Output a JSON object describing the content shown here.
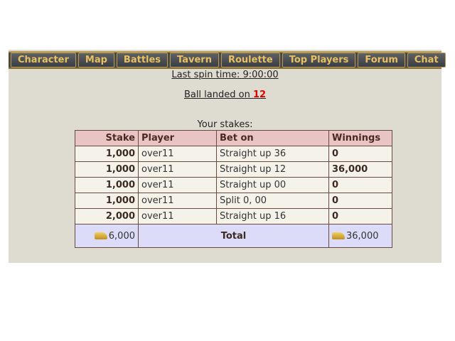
{
  "nav": {
    "tabs": [
      "Character",
      "Map",
      "Battles",
      "Tavern",
      "Roulette",
      "Top Players",
      "Forum",
      "Chat"
    ]
  },
  "spin": {
    "last_spin": "Last spin time: 9:00:00",
    "ball_prefix": "Ball landed on ",
    "ball_number": "12",
    "stakes_label": "Your stakes:"
  },
  "table": {
    "headers": [
      "Stake",
      "Player",
      "Bet on",
      "Winnings"
    ],
    "rows": [
      [
        "1,000",
        "over11",
        "Straight up 36",
        "0"
      ],
      [
        "1,000",
        "over11",
        "Straight up 12",
        "36,000"
      ],
      [
        "1,000",
        "over11",
        "Straight up 00",
        "0"
      ],
      [
        "1,000",
        "over11",
        "Split 0, 00",
        "0"
      ],
      [
        "2,000",
        "over11",
        "Straight up 16",
        "0"
      ]
    ],
    "total": {
      "stake": "6,000",
      "label": "Total",
      "winnings": "36,000"
    }
  },
  "colors": {
    "accent_gold": "#e8c060",
    "ball_red": "#e00000",
    "header_bg": "#e8c4c4",
    "total_bg": "#dcdcf8"
  },
  "icons": {
    "coin": "gold-coins-icon"
  }
}
